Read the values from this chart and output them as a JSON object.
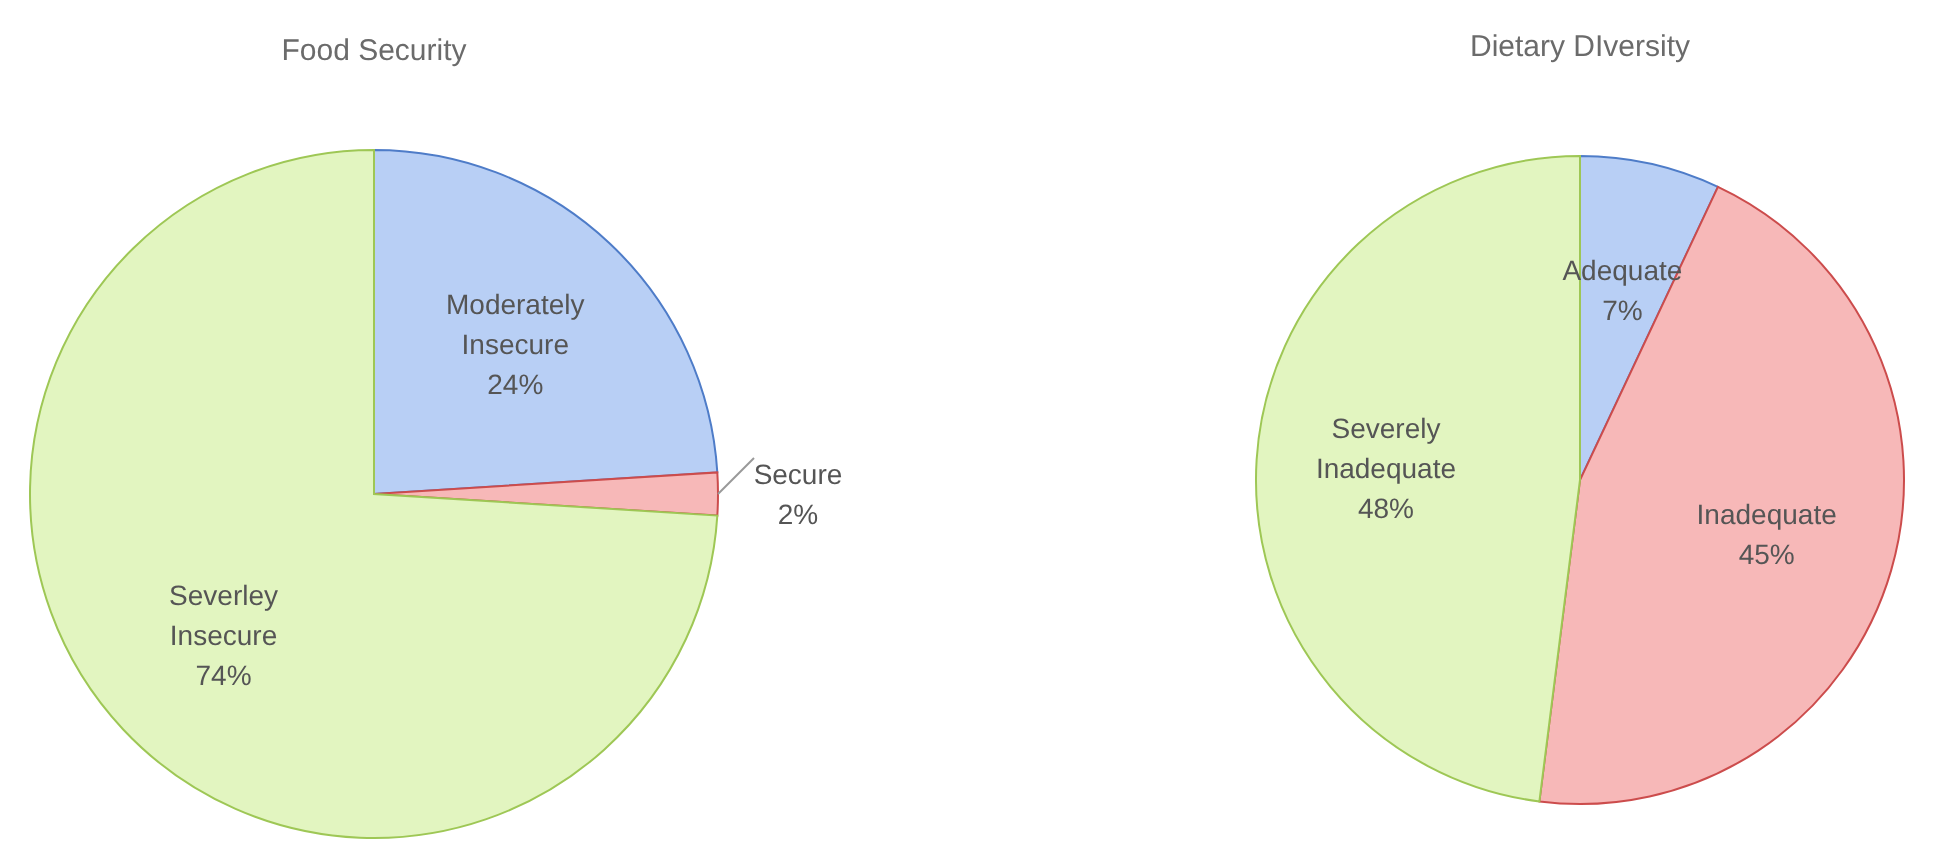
{
  "chart_data": [
    {
      "type": "pie",
      "title": "Food Security",
      "categories": [
        "Moderately Insecure",
        "Secure",
        "Severley Insecure"
      ],
      "values": [
        24,
        2,
        74
      ],
      "colors": [
        "#b8cff5",
        "#f7b8b8",
        "#e2f5c0"
      ],
      "value_labels": [
        "24%",
        "2%",
        "74%"
      ]
    },
    {
      "type": "pie",
      "title": "Dietary DIversity",
      "categories": [
        "Adequate",
        "Inadequate",
        "Severely Inadequate"
      ],
      "values": [
        7,
        45,
        48
      ],
      "colors": [
        "#b8cff5",
        "#f7b8b8",
        "#e2f5c0"
      ],
      "value_labels": [
        "7%",
        "45%",
        "48%"
      ]
    }
  ]
}
